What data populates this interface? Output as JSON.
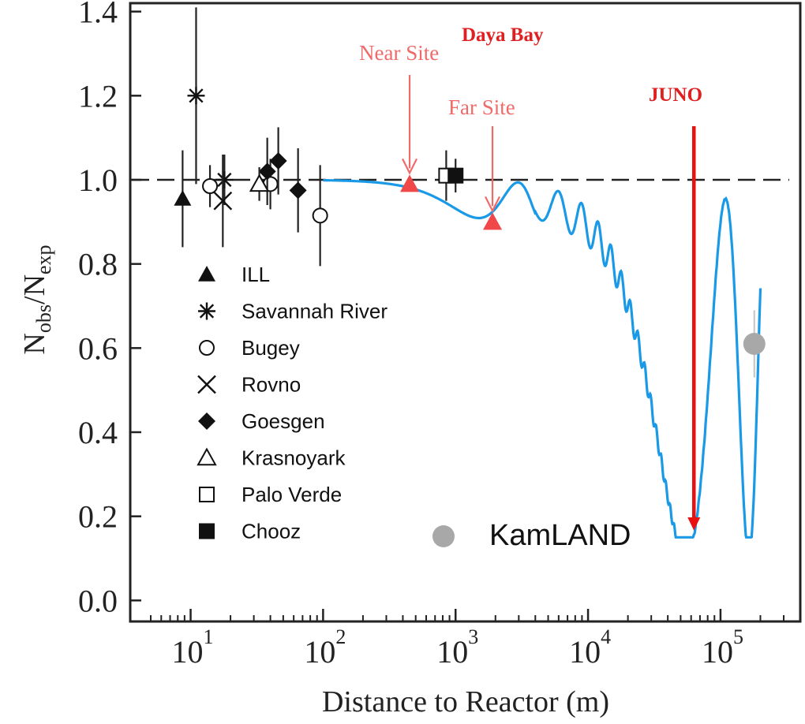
{
  "chart_data": {
    "type": "scatter",
    "title": "",
    "xlabel": "Distance to Reactor (m)",
    "ylabel_main": "N",
    "ylabel_sub1": "obs",
    "ylabel_sep": "/N",
    "ylabel_sub2": "exp",
    "x_scale": "log",
    "xlim": [
      3.5,
      400000
    ],
    "ylim": [
      -0.05,
      1.42
    ],
    "x_ticks": [
      {
        "value": 10,
        "base": "10",
        "exp": "1"
      },
      {
        "value": 100,
        "base": "10",
        "exp": "2"
      },
      {
        "value": 1000,
        "base": "10",
        "exp": "3"
      },
      {
        "value": 10000,
        "base": "10",
        "exp": "4"
      },
      {
        "value": 100000,
        "base": "10",
        "exp": "5"
      }
    ],
    "y_ticks": [
      "0.0",
      "0.2",
      "0.4",
      "0.6",
      "0.8",
      "1.0",
      "1.2",
      "1.4"
    ],
    "reference_line": 1.0,
    "legend_position": "lower-left",
    "series": [
      {
        "name": "ILL",
        "marker": "filled-triangle",
        "points": [
          {
            "x": 8.7,
            "y": 0.955,
            "err": 0.115
          }
        ]
      },
      {
        "name": "Savannah River",
        "marker": "asterisk",
        "points": [
          {
            "x": 11,
            "y": 1.2,
            "err": 0.21
          },
          {
            "x": 18,
            "y": 1.0,
            "err": 0.06
          }
        ]
      },
      {
        "name": "Bugey",
        "marker": "open-circle",
        "points": [
          {
            "x": 14,
            "y": 0.985,
            "err": 0.05
          },
          {
            "x": 40,
            "y": 0.99,
            "err": 0.06
          },
          {
            "x": 95,
            "y": 0.915,
            "err": 0.12
          }
        ]
      },
      {
        "name": "Rovno",
        "marker": "x",
        "points": [
          {
            "x": 17.5,
            "y": 0.95,
            "err": 0.11
          }
        ]
      },
      {
        "name": "Goesgen",
        "marker": "filled-diamond",
        "points": [
          {
            "x": 37.9,
            "y": 1.02,
            "err": 0.08
          },
          {
            "x": 45.9,
            "y": 1.045,
            "err": 0.08
          },
          {
            "x": 64.7,
            "y": 0.975,
            "err": 0.1
          }
        ]
      },
      {
        "name": "Krasnoyark",
        "marker": "open-triangle",
        "points": [
          {
            "x": 33,
            "y": 0.99,
            "err": 0.04
          }
        ]
      },
      {
        "name": "Palo Verde",
        "marker": "open-square",
        "points": [
          {
            "x": 850,
            "y": 1.01,
            "err": 0.06
          }
        ]
      },
      {
        "name": "Chooz",
        "marker": "filled-square",
        "points": [
          {
            "x": 1000,
            "y": 1.01,
            "err": 0.04
          }
        ]
      },
      {
        "name": "KamLAND",
        "marker": "gray-circle",
        "points": [
          {
            "x": 180000,
            "y": 0.61,
            "err": 0.08
          }
        ]
      },
      {
        "name": "Daya Bay",
        "marker": "red-triangle",
        "points": [
          {
            "x": 450,
            "y": 0.99
          },
          {
            "x": 1900,
            "y": 0.9
          }
        ]
      }
    ],
    "oscillation_curve": {
      "color": "#1a9ae6",
      "x_start": 100,
      "x_end": 200000
    },
    "annotations": {
      "daya_bay": "Daya Bay",
      "near_site": "Near Site",
      "far_site": "Far Site",
      "juno": "JUNO",
      "kamland": "KamLAND"
    },
    "colors": {
      "curve": "#1a9ae6",
      "daya_bay_light": "#f06a6a",
      "juno": "#e81010",
      "kamland": "#a8a8a8"
    }
  }
}
